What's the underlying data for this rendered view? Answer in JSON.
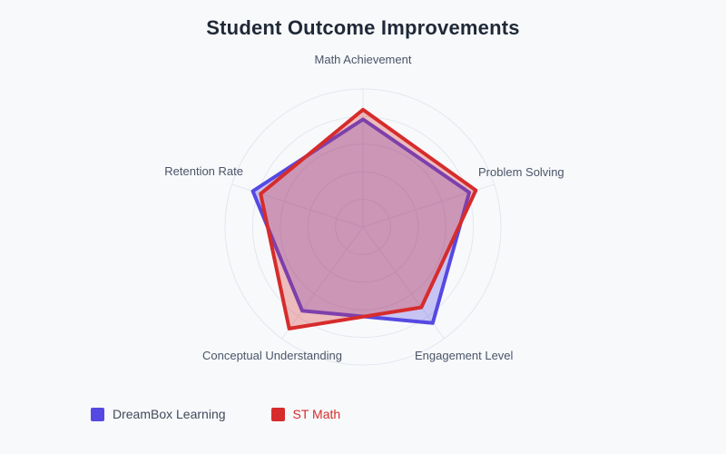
{
  "title": "Student Outcome Improvements",
  "colors": {
    "background": "#f8f9fb",
    "title": "#1f2937",
    "axis_label": "#4a5568",
    "grid": "#e2e7f0"
  },
  "chart_data": {
    "type": "radar",
    "title": "Student Outcome Improvements",
    "axes": [
      "Math Achievement",
      "Problem Solving",
      "Engagement Level",
      "Conceptual Understanding",
      "Retention Rate"
    ],
    "scale_max": 100,
    "rings": 5,
    "grid_shape": "circle",
    "legend_position": "bottom-left",
    "series": [
      {
        "name": "DreamBox Learning",
        "color": "#5649e2",
        "label_color": "#3f4a5a",
        "fill_opacity": 0.3,
        "values": [
          78,
          81,
          86,
          75,
          84
        ]
      },
      {
        "name": "ST Math",
        "color": "#d62c2c",
        "label_color": "#d62c2c",
        "fill_opacity": 0.3,
        "values": [
          85,
          86,
          72,
          91,
          78
        ]
      }
    ]
  }
}
